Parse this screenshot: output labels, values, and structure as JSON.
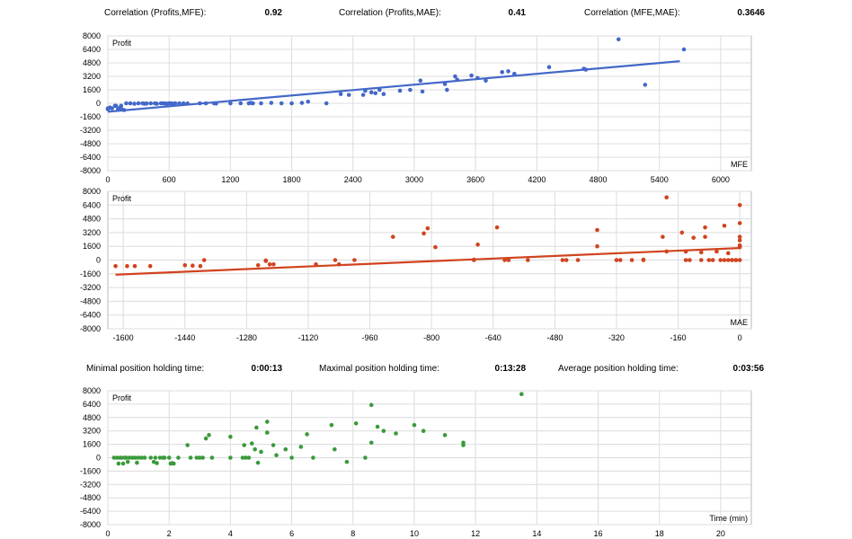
{
  "stats_top": [
    {
      "label": "Correlation (Profits,MFE):",
      "value": "0.92"
    },
    {
      "label": "Correlation (Profits,MAE):",
      "value": "0.41"
    },
    {
      "label": "Correlation (MFE,MAE):",
      "value": "0.3646"
    }
  ],
  "stats_mid": [
    {
      "label": "Minimal position holding time:",
      "value": "0:00:13"
    },
    {
      "label": "Maximal position holding time:",
      "value": "0:13:28"
    },
    {
      "label": "Average position holding time:",
      "value": "0:03:56"
    }
  ],
  "chart_data": [
    {
      "type": "scatter",
      "title": "",
      "ylabel": "Profit",
      "xlabel": "MFE",
      "color": "#4468c9",
      "xlim": [
        0,
        6300
      ],
      "ylim": [
        -8000,
        8000
      ],
      "xticks": [
        0,
        600,
        1200,
        1800,
        2400,
        3000,
        3600,
        4200,
        4800,
        5400,
        6000
      ],
      "yticks": [
        8000,
        6400,
        4800,
        3200,
        1600,
        0,
        -1600,
        -3200,
        -4800,
        -6400,
        -8000
      ],
      "points": [
        [
          0,
          -700
        ],
        [
          0,
          -600
        ],
        [
          20,
          -500
        ],
        [
          40,
          -600
        ],
        [
          70,
          -300
        ],
        [
          80,
          -300
        ],
        [
          100,
          -700
        ],
        [
          110,
          -650
        ],
        [
          130,
          -300
        ],
        [
          140,
          -750
        ],
        [
          160,
          -800
        ],
        [
          120,
          -500
        ],
        [
          180,
          0
        ],
        [
          220,
          0
        ],
        [
          260,
          -50
        ],
        [
          300,
          0
        ],
        [
          340,
          0
        ],
        [
          360,
          -50
        ],
        [
          380,
          -20
        ],
        [
          420,
          0
        ],
        [
          460,
          0
        ],
        [
          480,
          -50
        ],
        [
          520,
          0
        ],
        [
          540,
          0
        ],
        [
          560,
          -20
        ],
        [
          580,
          -40
        ],
        [
          600,
          -10
        ],
        [
          620,
          0
        ],
        [
          640,
          -50
        ],
        [
          660,
          0
        ],
        [
          700,
          0
        ],
        [
          740,
          0
        ],
        [
          780,
          -20
        ],
        [
          900,
          0
        ],
        [
          960,
          0
        ],
        [
          1040,
          0
        ],
        [
          1060,
          -20
        ],
        [
          1200,
          0
        ],
        [
          1300,
          0
        ],
        [
          1380,
          0
        ],
        [
          1400,
          50
        ],
        [
          1420,
          0
        ],
        [
          1500,
          0
        ],
        [
          1600,
          50
        ],
        [
          1700,
          0
        ],
        [
          1800,
          0
        ],
        [
          1900,
          50
        ],
        [
          1960,
          200
        ],
        [
          2140,
          0
        ],
        [
          2280,
          1100
        ],
        [
          2360,
          1000
        ],
        [
          2500,
          1000
        ],
        [
          2520,
          1500
        ],
        [
          2580,
          1300
        ],
        [
          2620,
          1200
        ],
        [
          2660,
          1600
        ],
        [
          2700,
          1100
        ],
        [
          2860,
          1500
        ],
        [
          2960,
          1600
        ],
        [
          3060,
          2700
        ],
        [
          3080,
          1400
        ],
        [
          3300,
          2300
        ],
        [
          3320,
          1600
        ],
        [
          3400,
          3200
        ],
        [
          3420,
          2800
        ],
        [
          3560,
          3300
        ],
        [
          3620,
          3000
        ],
        [
          3700,
          2700
        ],
        [
          3860,
          3700
        ],
        [
          3920,
          3800
        ],
        [
          3980,
          3500
        ],
        [
          4320,
          4300
        ],
        [
          4660,
          4100
        ],
        [
          4680,
          4000
        ],
        [
          5000,
          7600
        ],
        [
          5260,
          2200
        ],
        [
          5640,
          6400
        ]
      ],
      "trend": {
        "x": [
          0,
          5600
        ],
        "y": [
          -1000,
          5000
        ]
      }
    },
    {
      "type": "scatter",
      "title": "",
      "ylabel": "Profit",
      "xlabel": "MAE",
      "color": "#d0431f",
      "xlim": [
        -1640,
        30
      ],
      "ylim": [
        -8000,
        8000
      ],
      "xticks": [
        -1600,
        -1440,
        -1280,
        -1120,
        -960,
        -800,
        -640,
        -480,
        -320,
        -160,
        0
      ],
      "yticks": [
        8000,
        6400,
        4800,
        3200,
        1600,
        0,
        -1600,
        -3200,
        -4800,
        -6400,
        -8000
      ],
      "points": [
        [
          -1620,
          -700
        ],
        [
          -1590,
          -700
        ],
        [
          -1570,
          -700
        ],
        [
          -1530,
          -700
        ],
        [
          -1440,
          -600
        ],
        [
          -1420,
          -650
        ],
        [
          -1400,
          -700
        ],
        [
          -1390,
          0
        ],
        [
          -1250,
          -600
        ],
        [
          -1230,
          -100
        ],
        [
          -1230,
          -50
        ],
        [
          -1220,
          -500
        ],
        [
          -1210,
          -500
        ],
        [
          -1100,
          -500
        ],
        [
          -1050,
          0
        ],
        [
          -1040,
          -500
        ],
        [
          -1000,
          0
        ],
        [
          -900,
          2700
        ],
        [
          -820,
          3100
        ],
        [
          -810,
          3700
        ],
        [
          -790,
          1500
        ],
        [
          -690,
          0
        ],
        [
          -690,
          50
        ],
        [
          -680,
          1800
        ],
        [
          -630,
          3800
        ],
        [
          -610,
          0
        ],
        [
          -600,
          0
        ],
        [
          -550,
          0
        ],
        [
          -460,
          0
        ],
        [
          -450,
          0
        ],
        [
          -420,
          0
        ],
        [
          -370,
          1600
        ],
        [
          -370,
          3500
        ],
        [
          -320,
          0
        ],
        [
          -310,
          0
        ],
        [
          -280,
          0
        ],
        [
          -250,
          0
        ],
        [
          -250,
          50
        ],
        [
          -200,
          2700
        ],
        [
          -190,
          1000
        ],
        [
          -190,
          7300
        ],
        [
          -150,
          3200
        ],
        [
          -140,
          1000
        ],
        [
          -140,
          0
        ],
        [
          -130,
          0
        ],
        [
          -120,
          2600
        ],
        [
          -100,
          900
        ],
        [
          -100,
          0
        ],
        [
          -90,
          2700
        ],
        [
          -90,
          3800
        ],
        [
          -80,
          0
        ],
        [
          -70,
          0
        ],
        [
          -60,
          1000
        ],
        [
          -50,
          0
        ],
        [
          -40,
          0
        ],
        [
          -40,
          4000
        ],
        [
          -30,
          800
        ],
        [
          -30,
          0
        ],
        [
          -20,
          0
        ],
        [
          -20,
          0
        ],
        [
          -10,
          0
        ],
        [
          -10,
          0
        ],
        [
          0,
          1700
        ],
        [
          0,
          1700
        ],
        [
          0,
          2300
        ],
        [
          0,
          2700
        ],
        [
          0,
          4300
        ],
        [
          0,
          6400
        ],
        [
          0,
          0
        ],
        [
          0,
          1500
        ]
      ],
      "trend": {
        "x": [
          -1620,
          0
        ],
        "y": [
          -1700,
          1400
        ]
      }
    },
    {
      "type": "scatter",
      "title": "",
      "ylabel": "Profit",
      "xlabel": "Time (min)",
      "color": "#3a9a3a",
      "xlim": [
        0,
        21
      ],
      "ylim": [
        -8000,
        8000
      ],
      "xticks": [
        0,
        2,
        4,
        6,
        8,
        10,
        12,
        14,
        16,
        18,
        20
      ],
      "yticks": [
        8000,
        6400,
        4800,
        3200,
        1600,
        0,
        -1600,
        -3200,
        -4800,
        -6400,
        -8000
      ],
      "points": [
        [
          0.2,
          0
        ],
        [
          0.3,
          0
        ],
        [
          0.35,
          -700
        ],
        [
          0.4,
          0
        ],
        [
          0.45,
          0
        ],
        [
          0.5,
          -700
        ],
        [
          0.55,
          0
        ],
        [
          0.6,
          0
        ],
        [
          0.65,
          -500
        ],
        [
          0.7,
          0
        ],
        [
          0.8,
          0
        ],
        [
          0.9,
          0
        ],
        [
          0.95,
          -600
        ],
        [
          1.0,
          0
        ],
        [
          1.1,
          0
        ],
        [
          1.2,
          0
        ],
        [
          1.4,
          0
        ],
        [
          1.5,
          -500
        ],
        [
          1.55,
          0
        ],
        [
          1.6,
          -650
        ],
        [
          1.7,
          0
        ],
        [
          1.8,
          0
        ],
        [
          1.85,
          0
        ],
        [
          2.0,
          0
        ],
        [
          2.05,
          -700
        ],
        [
          2.1,
          -650
        ],
        [
          2.15,
          -700
        ],
        [
          2.3,
          0
        ],
        [
          2.6,
          1500
        ],
        [
          2.7,
          0
        ],
        [
          2.9,
          0
        ],
        [
          3.0,
          0
        ],
        [
          3.1,
          0
        ],
        [
          3.2,
          2300
        ],
        [
          3.3,
          2700
        ],
        [
          3.4,
          0
        ],
        [
          4.0,
          0
        ],
        [
          4.0,
          2500
        ],
        [
          4.4,
          0
        ],
        [
          4.45,
          1500
        ],
        [
          4.5,
          0
        ],
        [
          4.6,
          0
        ],
        [
          4.7,
          1700
        ],
        [
          4.8,
          1000
        ],
        [
          4.85,
          3600
        ],
        [
          4.9,
          -600
        ],
        [
          5.0,
          700
        ],
        [
          5.2,
          4300
        ],
        [
          5.2,
          3000
        ],
        [
          5.5,
          300
        ],
        [
          5.4,
          1500
        ],
        [
          5.8,
          1000
        ],
        [
          6.0,
          0
        ],
        [
          6.3,
          1300
        ],
        [
          6.5,
          2800
        ],
        [
          6.7,
          0
        ],
        [
          7.3,
          3900
        ],
        [
          7.4,
          1000
        ],
        [
          7.8,
          -500
        ],
        [
          8.1,
          4100
        ],
        [
          8.4,
          0
        ],
        [
          8.6,
          1800
        ],
        [
          8.6,
          6300
        ],
        [
          8.8,
          3700
        ],
        [
          9.0,
          3200
        ],
        [
          9.4,
          2900
        ],
        [
          10.0,
          3900
        ],
        [
          10.3,
          3200
        ],
        [
          11.0,
          2700
        ],
        [
          11.6,
          1800
        ],
        [
          11.6,
          1500
        ],
        [
          13.5,
          7600
        ]
      ]
    }
  ]
}
